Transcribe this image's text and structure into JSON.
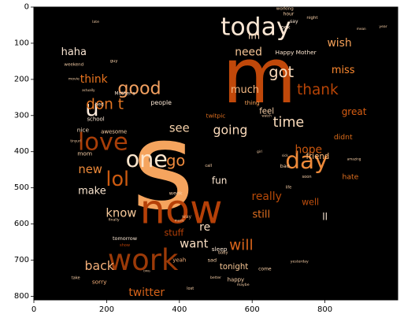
{
  "chart_data": {
    "type": "wordcloud",
    "title": "",
    "xlabel": "",
    "ylabel": "",
    "x_ticks": [
      0,
      200,
      400,
      600,
      800
    ],
    "y_ticks": [
      0,
      100,
      200,
      300,
      400,
      500,
      600,
      700,
      800
    ],
    "xlim": [
      0,
      1000
    ],
    "ylim": [
      810,
      0
    ],
    "background_color": "#000000",
    "words": [
      {
        "text": "s",
        "x": 355,
        "y": 440,
        "size": 330,
        "color": "#f5a45e"
      },
      {
        "text": "m",
        "x": 620,
        "y": 190,
        "size": 210,
        "color": "#c0480a"
      },
      {
        "text": "now",
        "x": 405,
        "y": 560,
        "size": 110,
        "color": "#b54008"
      },
      {
        "text": "work",
        "x": 300,
        "y": 700,
        "size": 80,
        "color": "#9c3a08"
      },
      {
        "text": "today",
        "x": 610,
        "y": 55,
        "size": 68,
        "color": "#fbe7d4"
      },
      {
        "text": "day",
        "x": 750,
        "y": 425,
        "size": 64,
        "color": "#ee8a3a"
      },
      {
        "text": "love",
        "x": 190,
        "y": 375,
        "size": 66,
        "color": "#a83e08"
      },
      {
        "text": "one",
        "x": 310,
        "y": 420,
        "size": 62,
        "color": "#fde6cd"
      },
      {
        "text": "lol",
        "x": 230,
        "y": 475,
        "size": 55,
        "color": "#cc5a10"
      },
      {
        "text": "u",
        "x": 160,
        "y": 280,
        "size": 60,
        "color": "#fdebdc"
      },
      {
        "text": "good",
        "x": 290,
        "y": 225,
        "size": 48,
        "color": "#f2a060"
      },
      {
        "text": "don t",
        "x": 195,
        "y": 270,
        "size": 40,
        "color": "#e27522"
      },
      {
        "text": "go",
        "x": 390,
        "y": 425,
        "size": 42,
        "color": "#f28c3e"
      },
      {
        "text": "got",
        "x": 680,
        "y": 180,
        "size": 42,
        "color": "#fbdcbc"
      },
      {
        "text": "thank",
        "x": 780,
        "y": 230,
        "size": 40,
        "color": "#b84406"
      },
      {
        "text": "time",
        "x": 700,
        "y": 320,
        "size": 38,
        "color": "#fbdcbc"
      },
      {
        "text": "going",
        "x": 540,
        "y": 340,
        "size": 34,
        "color": "#fddcbc"
      },
      {
        "text": "will",
        "x": 570,
        "y": 660,
        "size": 40,
        "color": "#d9641a"
      },
      {
        "text": "know",
        "x": 240,
        "y": 570,
        "size": 32,
        "color": "#f6c89a"
      },
      {
        "text": "back",
        "x": 180,
        "y": 715,
        "size": 34,
        "color": "#f5b07a"
      },
      {
        "text": "want",
        "x": 440,
        "y": 655,
        "size": 32,
        "color": "#fbe0c4"
      },
      {
        "text": "twitter",
        "x": 310,
        "y": 790,
        "size": 30,
        "color": "#d9641a"
      },
      {
        "text": "think",
        "x": 165,
        "y": 200,
        "size": 30,
        "color": "#e8741f"
      },
      {
        "text": "new",
        "x": 155,
        "y": 450,
        "size": 32,
        "color": "#ee8a3a"
      },
      {
        "text": "make",
        "x": 160,
        "y": 510,
        "size": 28,
        "color": "#fbe6d0"
      },
      {
        "text": "see",
        "x": 400,
        "y": 335,
        "size": 32,
        "color": "#f9d4ac"
      },
      {
        "text": "hope",
        "x": 755,
        "y": 395,
        "size": 30,
        "color": "#c8560e"
      },
      {
        "text": "need",
        "x": 590,
        "y": 125,
        "size": 30,
        "color": "#f7c696"
      },
      {
        "text": "much",
        "x": 580,
        "y": 230,
        "size": 28,
        "color": "#f5b984"
      },
      {
        "text": "really",
        "x": 640,
        "y": 525,
        "size": 30,
        "color": "#b94a08"
      },
      {
        "text": "still",
        "x": 625,
        "y": 575,
        "size": 28,
        "color": "#e07020"
      },
      {
        "text": "haha",
        "x": 110,
        "y": 125,
        "size": 28,
        "color": "#fbe7d4"
      },
      {
        "text": "miss",
        "x": 850,
        "y": 175,
        "size": 28,
        "color": "#ff8a30"
      },
      {
        "text": "wish",
        "x": 840,
        "y": 100,
        "size": 30,
        "color": "#f4a058"
      },
      {
        "text": "im",
        "x": 605,
        "y": 80,
        "size": 26,
        "color": "#fddcbc"
      },
      {
        "text": "great",
        "x": 880,
        "y": 290,
        "size": 26,
        "color": "#d95e12"
      },
      {
        "text": "fun",
        "x": 510,
        "y": 480,
        "size": 26,
        "color": "#fde6d0"
      },
      {
        "text": "re",
        "x": 470,
        "y": 610,
        "size": 30,
        "color": "#fbe0c4"
      },
      {
        "text": "ll",
        "x": 800,
        "y": 580,
        "size": 26,
        "color": "#fbe7d4"
      },
      {
        "text": "well",
        "x": 760,
        "y": 540,
        "size": 24,
        "color": "#c0500e"
      },
      {
        "text": "didnt",
        "x": 850,
        "y": 360,
        "size": 20,
        "color": "#d96b1a"
      },
      {
        "text": "feel",
        "x": 640,
        "y": 290,
        "size": 22,
        "color": "#f9d0a8"
      },
      {
        "text": "tonight",
        "x": 550,
        "y": 720,
        "size": 22,
        "color": "#f9c896"
      },
      {
        "text": "stuff",
        "x": 385,
        "y": 625,
        "size": 24,
        "color": "#b54008"
      },
      {
        "text": "hate",
        "x": 870,
        "y": 470,
        "size": 20,
        "color": "#e07020"
      },
      {
        "text": "friend",
        "x": 780,
        "y": 415,
        "size": 22,
        "color": "#f9b97c"
      },
      {
        "text": "Happy Mother",
        "x": 720,
        "y": 125,
        "size": 16,
        "color": "#fde6d0"
      },
      {
        "text": "thing",
        "x": 600,
        "y": 265,
        "size": 16,
        "color": "#f4a058"
      },
      {
        "text": "people",
        "x": 350,
        "y": 265,
        "size": 17,
        "color": "#fbe7d4"
      },
      {
        "text": "nice",
        "x": 135,
        "y": 340,
        "size": 16,
        "color": "#fbe0c4"
      },
      {
        "text": "mom",
        "x": 140,
        "y": 405,
        "size": 16,
        "color": "#f9d0a8"
      },
      {
        "text": "school",
        "x": 170,
        "y": 310,
        "size": 15,
        "color": "#fbe7d4"
      },
      {
        "text": "awesome",
        "x": 220,
        "y": 345,
        "size": 15,
        "color": "#f9d0a8"
      },
      {
        "text": "twitpic",
        "x": 500,
        "y": 300,
        "size": 16,
        "color": "#e07020"
      },
      {
        "text": "sleep",
        "x": 510,
        "y": 670,
        "size": 16,
        "color": "#fbe7d4"
      },
      {
        "text": "sad",
        "x": 490,
        "y": 700,
        "size": 14,
        "color": "#f9d0a8"
      },
      {
        "text": "yeah",
        "x": 400,
        "y": 700,
        "size": 15,
        "color": "#f5b07a"
      },
      {
        "text": "happy",
        "x": 555,
        "y": 755,
        "size": 15,
        "color": "#f9d0a8"
      },
      {
        "text": "sorry",
        "x": 180,
        "y": 760,
        "size": 16,
        "color": "#f5b07a"
      },
      {
        "text": "week",
        "x": 390,
        "y": 515,
        "size": 14,
        "color": "#f9d0a8"
      },
      {
        "text": "tomorrow",
        "x": 250,
        "y": 640,
        "size": 14,
        "color": "#fbe7d4"
      },
      {
        "text": "way",
        "x": 420,
        "y": 580,
        "size": 13,
        "color": "#f5b07a"
      },
      {
        "text": "bed",
        "x": 180,
        "y": 270,
        "size": 13,
        "color": "#fbe7d4"
      },
      {
        "text": "bad",
        "x": 690,
        "y": 440,
        "size": 14,
        "color": "#f9d0a8"
      },
      {
        "text": "come",
        "x": 635,
        "y": 725,
        "size": 13,
        "color": "#f9d0a8"
      },
      {
        "text": "look",
        "x": 690,
        "y": 55,
        "size": 14,
        "color": "#fbe7d4"
      },
      {
        "text": "say",
        "x": 715,
        "y": 40,
        "size": 13,
        "color": "#fbe7d4"
      },
      {
        "text": "hour",
        "x": 700,
        "y": 20,
        "size": 13,
        "color": "#f9d0a8"
      },
      {
        "text": "working",
        "x": 690,
        "y": 5,
        "size": 12,
        "color": "#f9d0a8"
      },
      {
        "text": "night",
        "x": 765,
        "y": 30,
        "size": 12,
        "color": "#f9d0a8"
      },
      {
        "text": "Mother s",
        "x": 250,
        "y": 240,
        "size": 13,
        "color": "#fbe7d4"
      },
      {
        "text": "weekend",
        "x": 110,
        "y": 160,
        "size": 12,
        "color": "#f9d0a8"
      },
      {
        "text": "guy",
        "x": 220,
        "y": 150,
        "size": 11,
        "color": "#f9d0a8"
      },
      {
        "text": "baby",
        "x": 520,
        "y": 680,
        "size": 11,
        "color": "#f9d0a8"
      },
      {
        "text": "call",
        "x": 480,
        "y": 440,
        "size": 11,
        "color": "#f9d0a8"
      },
      {
        "text": "soon",
        "x": 750,
        "y": 470,
        "size": 11,
        "color": "#f9d0a8"
      },
      {
        "text": "show",
        "x": 250,
        "y": 660,
        "size": 11,
        "color": "#b54008"
      },
      {
        "text": "life",
        "x": 700,
        "y": 500,
        "size": 11,
        "color": "#f9d0a8"
      },
      {
        "text": "lost",
        "x": 430,
        "y": 780,
        "size": 11,
        "color": "#f9d0a8"
      },
      {
        "text": "take",
        "x": 115,
        "y": 750,
        "size": 11,
        "color": "#f9d0a8"
      },
      {
        "text": "better",
        "x": 500,
        "y": 750,
        "size": 10,
        "color": "#f9d0a8"
      },
      {
        "text": "maybe",
        "x": 575,
        "y": 770,
        "size": 10,
        "color": "#f9d0a8"
      },
      {
        "text": "yesterday",
        "x": 730,
        "y": 705,
        "size": 10,
        "color": "#f9d0a8"
      },
      {
        "text": "finally",
        "x": 220,
        "y": 590,
        "size": 10,
        "color": "#f9d0a8"
      },
      {
        "text": "movie",
        "x": 110,
        "y": 200,
        "size": 10,
        "color": "#f9d0a8"
      },
      {
        "text": "late",
        "x": 170,
        "y": 42,
        "size": 10,
        "color": "#f9d0a8"
      },
      {
        "text": "year",
        "x": 960,
        "y": 55,
        "size": 10,
        "color": "#f9d0a8"
      },
      {
        "text": "mean",
        "x": 900,
        "y": 60,
        "size": 9,
        "color": "#f9d0a8"
      },
      {
        "text": "amazing",
        "x": 880,
        "y": 420,
        "size": 9,
        "color": "#f9d0a8"
      },
      {
        "text": "sick",
        "x": 690,
        "y": 410,
        "size": 9,
        "color": "#f9d0a8"
      },
      {
        "text": "music",
        "x": 400,
        "y": 590,
        "size": 9,
        "color": "#f9d0a8"
      },
      {
        "text": "tinyurl",
        "x": 115,
        "y": 370,
        "size": 9,
        "color": "#f9d0a8"
      },
      {
        "text": "girl",
        "x": 620,
        "y": 400,
        "size": 9,
        "color": "#f9d0a8"
      },
      {
        "text": "OMG",
        "x": 310,
        "y": 730,
        "size": 8,
        "color": "#f9d0a8"
      },
      {
        "text": "actually",
        "x": 150,
        "y": 230,
        "size": 9,
        "color": "#f9d0a8"
      },
      {
        "text": "watch",
        "x": 640,
        "y": 300,
        "size": 9,
        "color": "#f9d0a8"
      }
    ]
  }
}
